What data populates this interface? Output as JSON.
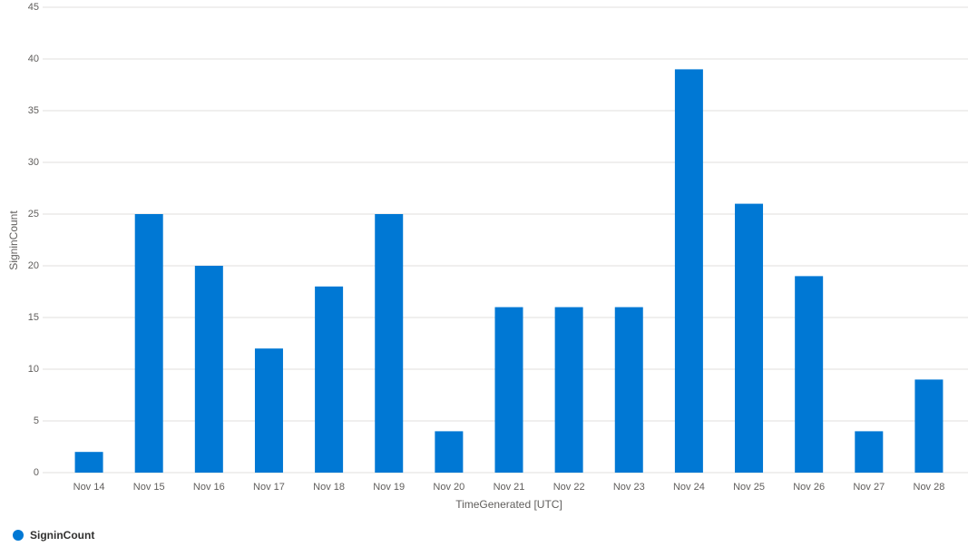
{
  "chart_data": {
    "type": "bar",
    "x_label": "TimeGenerated [UTC]",
    "y_label": "SigninCount",
    "categories": [
      "Nov 14",
      "Nov 15",
      "Nov 16",
      "Nov 17",
      "Nov 18",
      "Nov 19",
      "Nov 20",
      "Nov 21",
      "Nov 22",
      "Nov 23",
      "Nov 24",
      "Nov 25",
      "Nov 26",
      "Nov 27",
      "Nov 28"
    ],
    "series": [
      {
        "name": "SigninCount",
        "color": "#0078d4",
        "values": [
          2,
          25,
          20,
          12,
          18,
          25,
          4,
          16,
          16,
          16,
          39,
          26,
          19,
          4,
          9
        ]
      }
    ],
    "ylim": [
      0,
      45
    ],
    "yticks": [
      0,
      5,
      10,
      15,
      20,
      25,
      30,
      35,
      40,
      45
    ],
    "grid": true,
    "legend": "bottom-left"
  }
}
